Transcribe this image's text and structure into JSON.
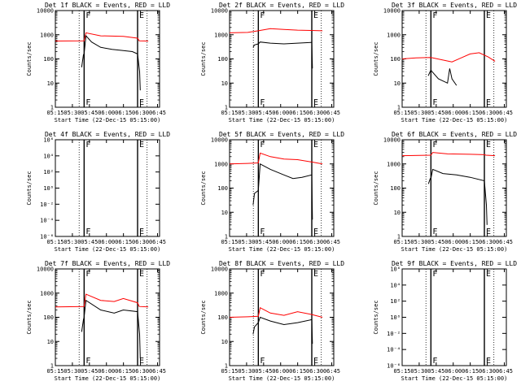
{
  "figure": {
    "xlabel": "Start Time (22-Dec-15 05:15:00)",
    "ylabel": "Counts/sec",
    "x_ticks": [
      "05:15",
      "05:30",
      "05:45",
      "06:00",
      "06:15",
      "06:30",
      "06:45"
    ],
    "y_ticks_log": [
      "1",
      "10",
      "100",
      "1000",
      "10000"
    ],
    "y_ticks_exp": [
      "10⁶",
      "10⁴",
      "10²",
      "10⁰",
      "10⁻²",
      "10⁻⁴",
      "10⁻⁶"
    ],
    "marker_left": "F",
    "marker_right": "E",
    "colors": {
      "events": "#000000",
      "lld": "#ff0000"
    }
  },
  "chart_data": [
    {
      "type": "line",
      "title": "Det 1f BLACK = Events, RED = LLD",
      "xlim_minutes": [
        0,
        46
      ],
      "y_scale": "log",
      "ylim": [
        1,
        10000
      ],
      "vlines_solid_minutes": [
        12.7,
        36.3
      ],
      "vlines_dotted_minutes": [
        10.5,
        40.5
      ],
      "series": [
        {
          "color": "red",
          "x_minutes": [
            0,
            12.7,
            13.5,
            20,
            30,
            36.3,
            37,
            41
          ],
          "values": [
            550,
            560,
            1200,
            900,
            850,
            720,
            560,
            550
          ]
        },
        {
          "color": "black",
          "x_minutes": [
            11.6,
            12.4,
            12.7,
            13.5,
            16,
            20,
            25,
            30,
            34,
            36.3,
            37.2,
            37.5
          ],
          "values": [
            45,
            150,
            160,
            900,
            500,
            300,
            250,
            220,
            200,
            160,
            30,
            5
          ]
        }
      ]
    },
    {
      "type": "line",
      "title": "Det 2f BLACK = Events, RED = LLD",
      "xlim_minutes": [
        0,
        46
      ],
      "y_scale": "log",
      "ylim": [
        1,
        10000
      ],
      "vlines_solid_minutes": [
        12.7,
        36.3
      ],
      "vlines_dotted_minutes": [
        10.5,
        40.5
      ],
      "series": [
        {
          "color": "red",
          "x_minutes": [
            0,
            8,
            12.7,
            18,
            24,
            30,
            36.3,
            41
          ],
          "values": [
            1200,
            1250,
            1450,
            1800,
            1650,
            1550,
            1500,
            1450
          ]
        },
        {
          "color": "black",
          "x_minutes": [
            10.4,
            11,
            12.7,
            13.5,
            18,
            24,
            30,
            36.3,
            36.6
          ],
          "values": [
            300,
            380,
            420,
            500,
            450,
            420,
            450,
            480,
            40
          ]
        }
      ]
    },
    {
      "type": "line",
      "title": "Det 3f BLACK = Events, RED = LLD",
      "xlim_minutes": [
        0,
        46
      ],
      "y_scale": "log",
      "ylim": [
        1,
        10000
      ],
      "vlines_solid_minutes": [
        12.7,
        36.3
      ],
      "vlines_dotted_minutes": [
        10.5,
        40.5
      ],
      "series": [
        {
          "color": "red",
          "x_minutes": [
            0,
            6,
            12.7,
            18,
            22,
            26,
            30,
            34,
            38,
            41
          ],
          "values": [
            100,
            110,
            115,
            90,
            75,
            110,
            160,
            180,
            120,
            80
          ]
        },
        {
          "color": "black",
          "x_minutes": [
            11.5,
            12.7,
            13.2,
            16,
            20,
            21,
            22,
            24
          ],
          "values": [
            20,
            35,
            30,
            15,
            10,
            40,
            15,
            8
          ]
        }
      ]
    },
    {
      "type": "line",
      "title": "Det 4f BLACK = Events, RED = LLD",
      "xlim_minutes": [
        0,
        46
      ],
      "y_scale": "log",
      "ylim": [
        1e-06,
        1000000
      ],
      "vlines_solid_minutes": [
        12.7,
        36.3
      ],
      "vlines_dotted_minutes": [
        10.5,
        40.5
      ],
      "series": []
    },
    {
      "type": "line",
      "title": "Det 5f BLACK = Events, RED = LLD",
      "xlim_minutes": [
        0,
        46
      ],
      "y_scale": "log",
      "ylim": [
        1,
        10000
      ],
      "vlines_solid_minutes": [
        12.7,
        36.3
      ],
      "vlines_dotted_minutes": [
        10.5,
        40.5
      ],
      "series": [
        {
          "color": "red",
          "x_minutes": [
            0,
            8,
            12.7,
            13.5,
            18,
            24,
            30,
            36.3,
            41
          ],
          "values": [
            1000,
            1050,
            1100,
            2800,
            2000,
            1600,
            1500,
            1200,
            1000
          ]
        },
        {
          "color": "black",
          "x_minutes": [
            10.4,
            11,
            12.7,
            13.5,
            18,
            24,
            28,
            32,
            36.3,
            36.6
          ],
          "values": [
            20,
            60,
            80,
            1000,
            600,
            350,
            250,
            280,
            350,
            5
          ]
        }
      ]
    },
    {
      "type": "line",
      "title": "Det 6f BLACK = Events, RED = LLD",
      "xlim_minutes": [
        0,
        46
      ],
      "y_scale": "log",
      "ylim": [
        1,
        10000
      ],
      "vlines_solid_minutes": [
        12.7,
        36.3
      ],
      "vlines_dotted_minutes": [
        10.5,
        40.5
      ],
      "series": [
        {
          "color": "red",
          "x_minutes": [
            0,
            12.7,
            13.5,
            20,
            30,
            36.3,
            37,
            41
          ],
          "values": [
            2200,
            2300,
            3000,
            2600,
            2500,
            2400,
            2300,
            2200
          ]
        },
        {
          "color": "black",
          "x_minutes": [
            11.6,
            12.4,
            12.7,
            13.5,
            18,
            24,
            30,
            36.3,
            37.2,
            37.5
          ],
          "values": [
            150,
            250,
            250,
            600,
            400,
            350,
            280,
            200,
            20,
            3
          ]
        }
      ]
    },
    {
      "type": "line",
      "title": "Det 7f BLACK = Events, RED = LLD",
      "xlim_minutes": [
        0,
        46
      ],
      "y_scale": "log",
      "ylim": [
        1,
        10000
      ],
      "vlines_solid_minutes": [
        12.7,
        36.3
      ],
      "vlines_dotted_minutes": [
        10.5,
        40.5
      ],
      "series": [
        {
          "color": "red",
          "x_minutes": [
            0,
            12.7,
            13.5,
            20,
            26,
            30,
            36.3,
            37,
            41
          ],
          "values": [
            270,
            280,
            900,
            500,
            450,
            600,
            400,
            280,
            270
          ]
        },
        {
          "color": "black",
          "x_minutes": [
            11.6,
            12.4,
            12.7,
            13.5,
            20,
            26,
            30,
            36.3,
            37.2,
            37.5
          ],
          "values": [
            25,
            80,
            100,
            500,
            200,
            150,
            200,
            170,
            20,
            2
          ]
        }
      ]
    },
    {
      "type": "line",
      "title": "Det 8f BLACK = Events, RED = LLD",
      "xlim_minutes": [
        0,
        46
      ],
      "y_scale": "log",
      "ylim": [
        1,
        10000
      ],
      "vlines_solid_minutes": [
        12.7,
        36.3
      ],
      "vlines_dotted_minutes": [
        10.5,
        40.5
      ],
      "series": [
        {
          "color": "red",
          "x_minutes": [
            0,
            8,
            12.7,
            13.5,
            18,
            24,
            30,
            36.3,
            41
          ],
          "values": [
            100,
            105,
            110,
            250,
            150,
            120,
            170,
            130,
            100
          ]
        },
        {
          "color": "black",
          "x_minutes": [
            10.4,
            11,
            12.7,
            13.5,
            18,
            24,
            30,
            36.3,
            36.6
          ],
          "values": [
            20,
            40,
            60,
            100,
            70,
            50,
            60,
            80,
            8
          ]
        }
      ]
    },
    {
      "type": "line",
      "title": "Det 9f BLACK = Events, RED = LLD",
      "xlim_minutes": [
        0,
        46
      ],
      "y_scale": "log",
      "ylim": [
        1e-06,
        1000000
      ],
      "vlines_solid_minutes": [
        12.7,
        36.3
      ],
      "vlines_dotted_minutes": [
        10.5,
        40.5
      ],
      "series": []
    }
  ]
}
